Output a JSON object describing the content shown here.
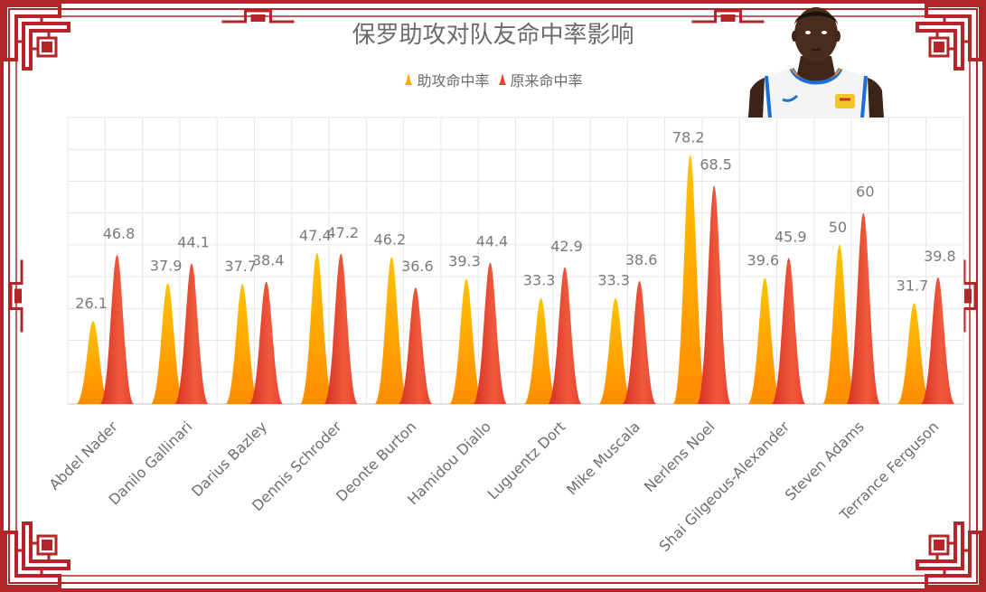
{
  "chart_data": {
    "type": "bar",
    "title": "保罗助攻对队友命中率影响",
    "categories": [
      "Abdel Nader",
      "Danilo Gallinari",
      "Darius Bazley",
      "Dennis Schroder",
      "Deonte Burton",
      "Hamidou Diallo",
      "Luguentz Dort",
      "Mike Muscala",
      "Nerlens Noel",
      "Shai Gilgeous-Alexander",
      "Steven Adams",
      "Terrance Ferguson"
    ],
    "series": [
      {
        "name": "助攻命中率",
        "values": [
          26.1,
          37.9,
          37.7,
          47.4,
          46.2,
          39.3,
          33.3,
          33.3,
          78.2,
          39.6,
          50,
          31.7
        ],
        "color": "#ffa500"
      },
      {
        "name": "原来命中率",
        "values": [
          46.8,
          44.1,
          38.4,
          47.2,
          36.6,
          44.4,
          42.9,
          38.6,
          68.5,
          45.9,
          60,
          39.8
        ],
        "color": "#e8402f"
      }
    ],
    "ylim": [
      0,
      90
    ],
    "xlabel": "",
    "ylabel": "",
    "grid": true,
    "legend_position": "top-center"
  },
  "colors": {
    "frame": "#b2262a",
    "grid": "#e6e6e6",
    "text": "#6b6b6b"
  },
  "image": {
    "player_photo": "player-photo"
  }
}
